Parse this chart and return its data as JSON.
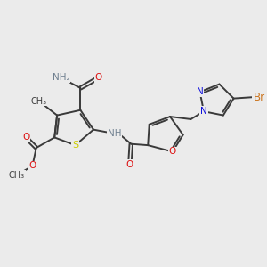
{
  "background_color": "#ebebeb",
  "bond_color": "#3a3a3a",
  "bond_width": 1.4,
  "font_size": 7.5,
  "atom_colors": {
    "N": "#1010dd",
    "O": "#dd1010",
    "S": "#cccc00",
    "Br": "#cc7722",
    "H_label": "#708090",
    "C": "#3a3a3a"
  },
  "xlim": [
    0,
    10
  ],
  "ylim": [
    0,
    10
  ]
}
